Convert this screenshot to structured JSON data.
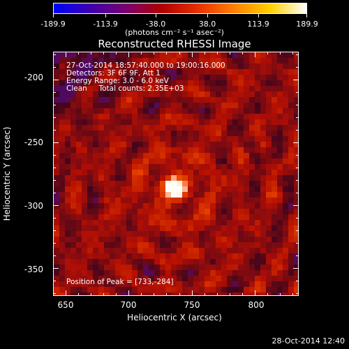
{
  "colorbar": {
    "tick_labels": [
      "-189.9",
      "-113.9",
      "-38.0",
      "38.0",
      "113.9",
      "189.9"
    ],
    "units": "(photons cm⁻² s⁻¹ asec⁻²)",
    "colors": [
      "#0000ff",
      "#3d00b0",
      "#7a0070",
      "#b00000",
      "#e83000",
      "#ff8000",
      "#ffd000",
      "#ffffff"
    ]
  },
  "title": "Reconstructed RHESSI Image",
  "annotations": [
    "27-Oct-2014 18:57:40.000 to 19:00:16.000",
    "Detectors: 3F 6F 9F, Att 1",
    "Energy Range: 3.0 - 6.0 keV",
    "Clean     Total counts: 2.35E+03"
  ],
  "peak_label": "Position of Peak = [733,-284]",
  "x_axis": {
    "label": "Heliocentric X (arcsec)",
    "ticks": [
      "650",
      "700",
      "750",
      "800"
    ],
    "range": [
      640,
      835
    ]
  },
  "y_axis": {
    "label": "Heliocentric Y (arcsec)",
    "ticks": [
      "-200",
      "-250",
      "-300",
      "-350"
    ],
    "range": [
      -372,
      -178
    ]
  },
  "peak": {
    "x": 733,
    "y": -284
  },
  "footer_date": "28-Oct-2014 12:40"
}
